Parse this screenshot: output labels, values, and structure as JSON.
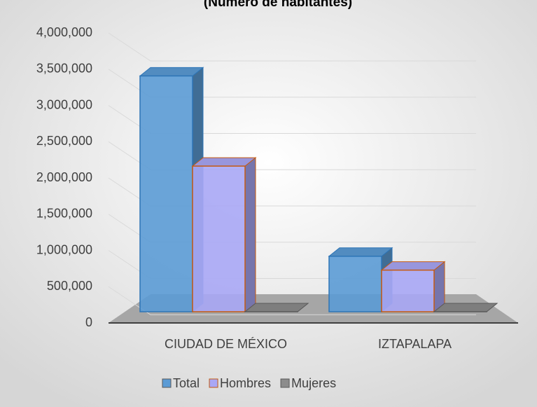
{
  "chart_data": {
    "type": "bar3d",
    "title": "(Número de habitantes)",
    "categories": [
      "CIUDAD DE MÉXICO",
      "IZTAPALAPA"
    ],
    "series": [
      {
        "name": "Total",
        "color": "#5b9bd5",
        "values": [
          3400000,
          800000
        ]
      },
      {
        "name": "Hombres",
        "color": "#a9a7f5",
        "values": [
          2100000,
          600000
        ]
      },
      {
        "name": "Mujeres",
        "color": "#8c8c8c",
        "values": [
          0,
          0
        ]
      }
    ],
    "ylim": [
      0,
      4000000
    ],
    "yticks": [
      0,
      {
        "value": 500000,
        "label": "500,000"
      },
      {
        "value": 1000000,
        "label": "1,000,000"
      },
      {
        "value": 1500000,
        "label": "1,500,000"
      },
      {
        "value": 2000000,
        "label": "2,000,000"
      },
      {
        "value": 2500000,
        "label": "2,500,000"
      },
      {
        "value": 3000000,
        "label": "3,000,000"
      },
      {
        "value": 3500000,
        "label": "3,500,000"
      },
      {
        "value": 4000000,
        "label": "4,000,000"
      }
    ],
    "grid": true
  }
}
